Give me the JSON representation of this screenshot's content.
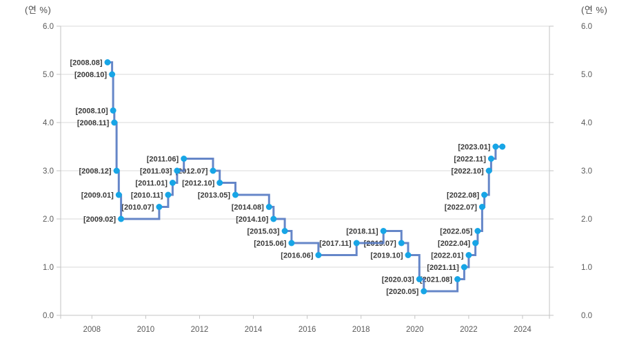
{
  "chart_data": {
    "type": "line",
    "subtype": "step-after",
    "title": "",
    "y_axis_title_left": "(연 %)",
    "y_axis_title_right": "(연 %)",
    "legend": "none",
    "grid": "horizontal",
    "ylim": [
      0,
      6
    ],
    "xlim": [
      2006.84,
      2025.0
    ],
    "y_ticks": [
      {
        "v": 0,
        "label": "0.0"
      },
      {
        "v": 1,
        "label": "1.0"
      },
      {
        "v": 2,
        "label": "2.0"
      },
      {
        "v": 3,
        "label": "3.0"
      },
      {
        "v": 4,
        "label": "4.0"
      },
      {
        "v": 5,
        "label": "5.0"
      },
      {
        "v": 6,
        "label": "6.0"
      }
    ],
    "x_ticks": [
      {
        "v": 2008,
        "label": "2008"
      },
      {
        "v": 2010,
        "label": "2010"
      },
      {
        "v": 2012,
        "label": "2012"
      },
      {
        "v": 2014,
        "label": "2014"
      },
      {
        "v": 2016,
        "label": "2016"
      },
      {
        "v": 2018,
        "label": "2018"
      },
      {
        "v": 2020,
        "label": "2020"
      },
      {
        "v": 2022,
        "label": "2022"
      },
      {
        "v": 2024,
        "label": "2024"
      }
    ],
    "points": [
      {
        "label": "[2008.08]",
        "t": 2008.583,
        "v": 5.25
      },
      {
        "label": "[2008.10]",
        "t": 2008.75,
        "v": 5.0
      },
      {
        "label": "[2008.10]",
        "t": 2008.79,
        "v": 4.25
      },
      {
        "label": "[2008.11]",
        "t": 2008.833,
        "v": 4.0
      },
      {
        "label": "[2008.12]",
        "t": 2008.917,
        "v": 3.0
      },
      {
        "label": "[2009.01]",
        "t": 2009.0,
        "v": 2.5
      },
      {
        "label": "[2009.02]",
        "t": 2009.083,
        "v": 2.0
      },
      {
        "label": "[2010.07]",
        "t": 2010.5,
        "v": 2.25
      },
      {
        "label": "[2010.11]",
        "t": 2010.833,
        "v": 2.5
      },
      {
        "label": "[2011.01]",
        "t": 2011.0,
        "v": 2.75
      },
      {
        "label": "[2011.03]",
        "t": 2011.167,
        "v": 3.0
      },
      {
        "label": "[2011.06]",
        "t": 2011.417,
        "v": 3.25
      },
      {
        "label": "[2012.07]",
        "t": 2012.5,
        "v": 3.0
      },
      {
        "label": "[2012.10]",
        "t": 2012.75,
        "v": 2.75
      },
      {
        "label": "[2013.05]",
        "t": 2013.333,
        "v": 2.5
      },
      {
        "label": "[2014.08]",
        "t": 2014.583,
        "v": 2.25
      },
      {
        "label": "[2014.10]",
        "t": 2014.75,
        "v": 2.0
      },
      {
        "label": "[2015.03]",
        "t": 2015.167,
        "v": 1.75
      },
      {
        "label": "[2015.06]",
        "t": 2015.417,
        "v": 1.5
      },
      {
        "label": "[2016.06]",
        "t": 2016.417,
        "v": 1.25
      },
      {
        "label": "[2017.11]",
        "t": 2017.833,
        "v": 1.5
      },
      {
        "label": "[2018.11]",
        "t": 2018.833,
        "v": 1.75
      },
      {
        "label": "[2019.07]",
        "t": 2019.5,
        "v": 1.5
      },
      {
        "label": "[2019.10]",
        "t": 2019.75,
        "v": 1.25
      },
      {
        "label": "[2020.03]",
        "t": 2020.167,
        "v": 0.75
      },
      {
        "label": "[2020.05]",
        "t": 2020.333,
        "v": 0.5
      },
      {
        "label": "[2021.08]",
        "t": 2021.583,
        "v": 0.75
      },
      {
        "label": "[2021.11]",
        "t": 2021.833,
        "v": 1.0
      },
      {
        "label": "[2022.01]",
        "t": 2022.0,
        "v": 1.25
      },
      {
        "label": "[2022.04]",
        "t": 2022.25,
        "v": 1.5
      },
      {
        "label": "[2022.05]",
        "t": 2022.333,
        "v": 1.75
      },
      {
        "label": "[2022.07]",
        "t": 2022.5,
        "v": 2.25
      },
      {
        "label": "[2022.08]",
        "t": 2022.583,
        "v": 2.5
      },
      {
        "label": "[2022.10]",
        "t": 2022.75,
        "v": 3.0
      },
      {
        "label": "[2022.11]",
        "t": 2022.833,
        "v": 3.25
      },
      {
        "label": "[2023.01]",
        "t": 2023.0,
        "v": 3.5
      },
      {
        "label": "",
        "t": 2023.25,
        "v": 3.5
      }
    ],
    "colors": {
      "grid": "#d9d9d9",
      "axis": "#c3c3c3",
      "tick_label": "#595959",
      "line": "#5479c2",
      "marker": "#17a5e6",
      "point_label": "#3a3a3a",
      "axis_title": "#4d4d4d",
      "background": "#ffffff"
    }
  }
}
